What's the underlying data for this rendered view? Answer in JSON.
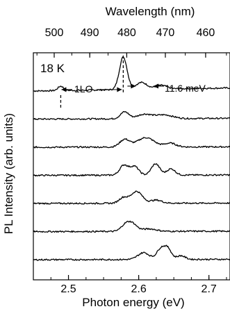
{
  "chart_data": {
    "type": "line",
    "top_axis": {
      "label": "Wavelength (nm)",
      "ticks": [
        500,
        490,
        480,
        470,
        460
      ]
    },
    "x_axis": {
      "label": "Photon energy (eV)",
      "ticks": [
        2.5,
        2.6,
        2.7
      ],
      "range": [
        2.45,
        2.73
      ]
    },
    "y_axis": {
      "label": "PL Intensity (arb. units)"
    },
    "annotations": {
      "temperature": "18 K",
      "lo_label": "1LO",
      "width_label": "11.6 meV",
      "dashed_lines_x": [
        2.489,
        2.578
      ]
    },
    "series": [
      {
        "offset": 0,
        "peaks": [
          [
            2.489,
            0.35,
            0.004
          ],
          [
            2.578,
            2.6,
            0.0055
          ],
          [
            2.604,
            0.55,
            0.008
          ],
          [
            2.632,
            0.3,
            0.008
          ]
        ],
        "base_slope": 0.4
      },
      {
        "offset": 1,
        "peaks": [
          [
            2.58,
            0.55,
            0.006
          ],
          [
            2.608,
            0.35,
            0.01
          ],
          [
            2.636,
            0.3,
            0.012
          ]
        ],
        "base_slope": 0.1
      },
      {
        "offset": 2,
        "peaks": [
          [
            2.58,
            0.6,
            0.007
          ],
          [
            2.61,
            0.75,
            0.012
          ],
          [
            2.645,
            0.3,
            0.008
          ]
        ],
        "base_slope": 0.05
      },
      {
        "offset": 3,
        "peaks": [
          [
            2.579,
            0.8,
            0.006
          ],
          [
            2.594,
            0.7,
            0.006
          ],
          [
            2.624,
            0.9,
            0.006
          ],
          [
            2.646,
            0.5,
            0.006
          ]
        ],
        "base_slope": 0.05
      },
      {
        "offset": 4,
        "peaks": [
          [
            2.578,
            0.45,
            0.006
          ],
          [
            2.597,
            0.95,
            0.008
          ],
          [
            2.625,
            0.25,
            0.008
          ]
        ],
        "base_slope": 0.05
      },
      {
        "offset": 5,
        "peaks": [
          [
            2.58,
            0.4,
            0.006
          ],
          [
            2.59,
            0.65,
            0.007
          ],
          [
            2.615,
            0.2,
            0.01
          ]
        ],
        "base_slope": 0.05
      },
      {
        "offset": 6,
        "peaks": [
          [
            2.607,
            0.55,
            0.008
          ],
          [
            2.632,
            0.9,
            0.006
          ],
          [
            2.642,
            0.75,
            0.005
          ],
          [
            2.66,
            0.3,
            0.006
          ]
        ],
        "base_slope": 0.05
      }
    ]
  }
}
